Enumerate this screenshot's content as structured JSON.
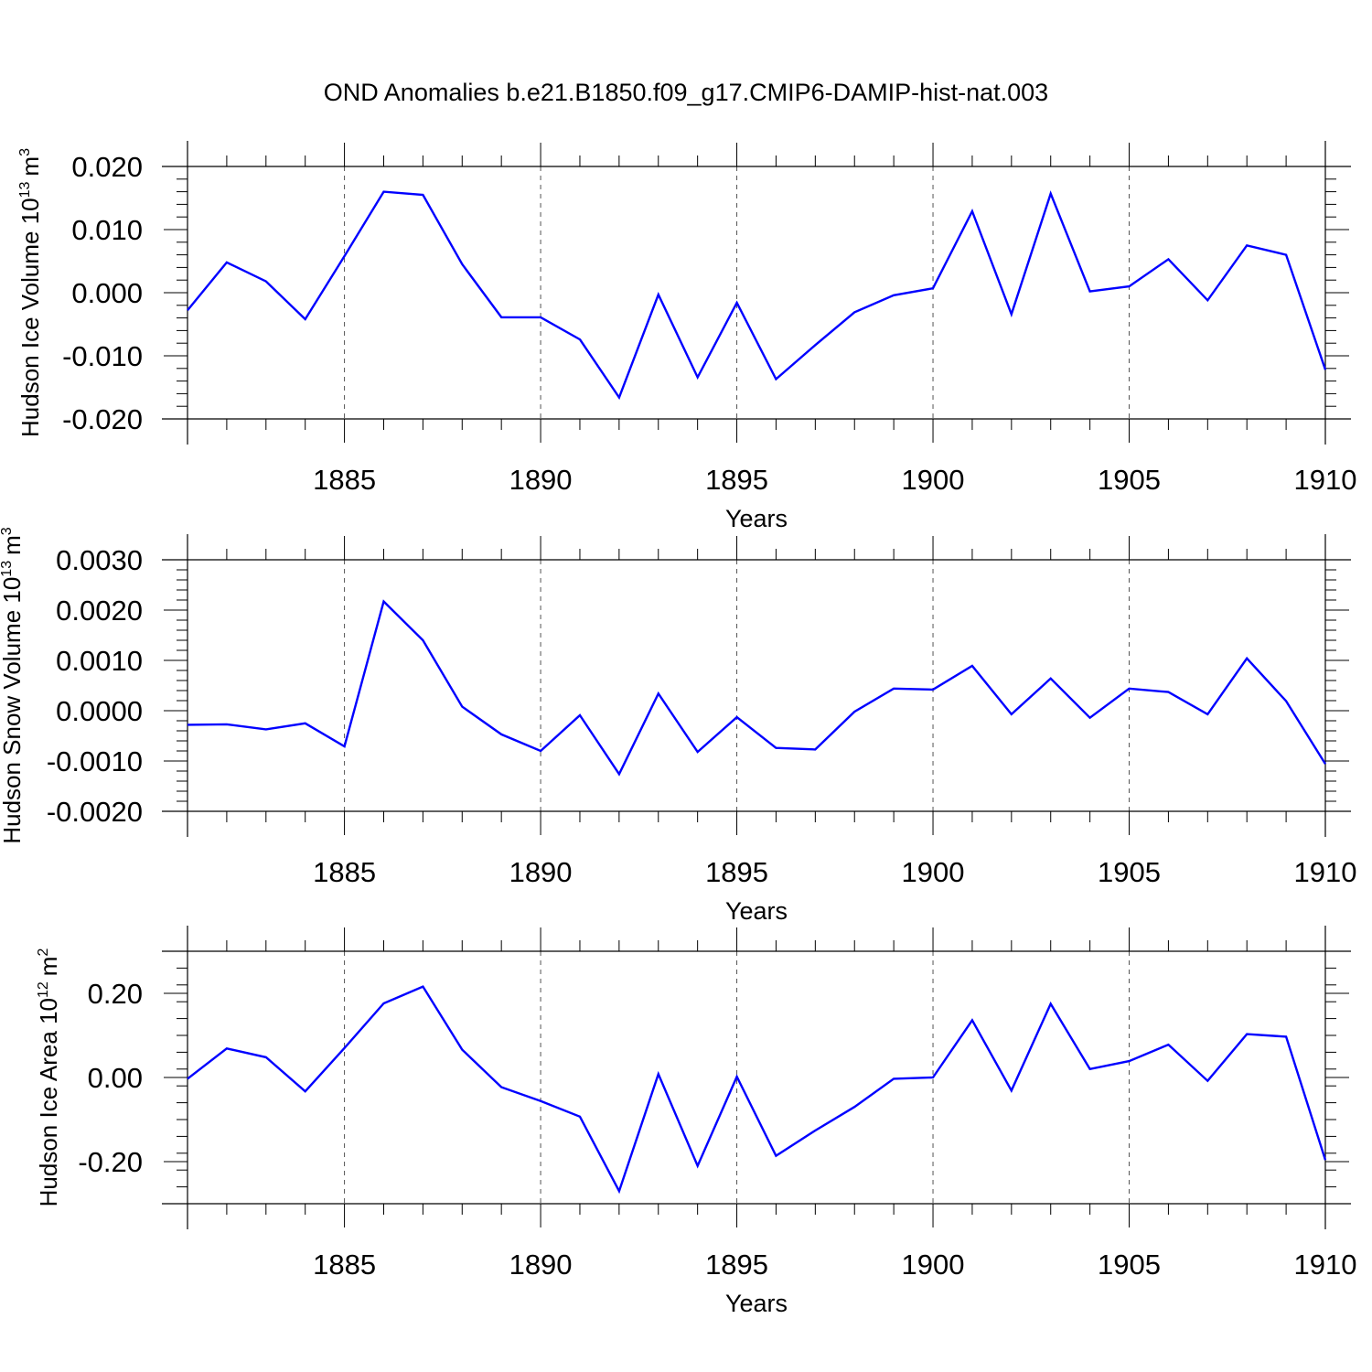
{
  "title": "OND Anomalies b.e21.B1850.f09_g17.CMIP6-DAMIP-hist-nat.003",
  "colors": {
    "line": "#0000ff",
    "axis": "#000000",
    "grid": "#555555"
  },
  "chart_data": [
    {
      "type": "line",
      "title": "OND Anomalies b.e21.B1850.f09_g17.CMIP6-DAMIP-hist-nat.003",
      "xlabel": "Years",
      "ylabel": {
        "text": "Hudson Ice Volume 10",
        "exp": "13",
        "unit": "m",
        "unit_exp": "3"
      },
      "xlim": [
        1881,
        1910
      ],
      "ylim": [
        -0.02,
        0.02
      ],
      "xticks": [
        1885,
        1890,
        1895,
        1900,
        1905,
        1910
      ],
      "xtick_labels": [
        "1885",
        "1890",
        "1895",
        "1900",
        "1905",
        "1910"
      ],
      "yticks": [
        -0.02,
        -0.01,
        0.0,
        0.01,
        0.02
      ],
      "ytick_labels": [
        "-0.020",
        "-0.010",
        "0.000",
        "0.010",
        "0.020"
      ],
      "series": [
        {
          "name": "Hudson Ice Volume",
          "x": [
            1881,
            1882,
            1883,
            1884,
            1885,
            1886,
            1887,
            1888,
            1889,
            1890,
            1891,
            1892,
            1893,
            1894,
            1895,
            1896,
            1897,
            1898,
            1899,
            1900,
            1901,
            1902,
            1903,
            1904,
            1905,
            1906,
            1907,
            1908,
            1909,
            1910
          ],
          "values": [
            -0.0028,
            0.0048,
            0.0018,
            -0.0042,
            0.0058,
            0.016,
            0.0155,
            0.0045,
            -0.0039,
            -0.0039,
            -0.0074,
            -0.0166,
            -0.0003,
            -0.0134,
            -0.0016,
            -0.0137,
            -0.0083,
            -0.0031,
            -0.0004,
            0.0007,
            0.0129,
            -0.0034,
            0.0157,
            0.0002,
            0.001,
            0.0053,
            -0.0012,
            0.0075,
            0.006,
            -0.0122
          ]
        }
      ]
    },
    {
      "type": "line",
      "xlabel": "Years",
      "ylabel": {
        "text": "Hudson Snow Volume 10",
        "exp": "13",
        "unit": "m",
        "unit_exp": "3"
      },
      "xlim": [
        1881,
        1910
      ],
      "ylim": [
        -0.002,
        0.003
      ],
      "xticks": [
        1885,
        1890,
        1895,
        1900,
        1905,
        1910
      ],
      "xtick_labels": [
        "1885",
        "1890",
        "1895",
        "1900",
        "1905",
        "1910"
      ],
      "yticks": [
        -0.002,
        -0.001,
        0.0,
        0.001,
        0.002,
        0.003
      ],
      "ytick_labels": [
        "-0.0020",
        "-0.0010",
        "0.0000",
        "0.0010",
        "0.0020",
        "0.0030"
      ],
      "series": [
        {
          "name": "Hudson Snow Volume",
          "x": [
            1881,
            1882,
            1883,
            1884,
            1885,
            1886,
            1887,
            1888,
            1889,
            1890,
            1891,
            1892,
            1893,
            1894,
            1895,
            1896,
            1897,
            1898,
            1899,
            1900,
            1901,
            1902,
            1903,
            1904,
            1905,
            1906,
            1907,
            1908,
            1909,
            1910
          ],
          "values": [
            -0.00028,
            -0.00027,
            -0.00037,
            -0.00025,
            -0.00071,
            0.00217,
            0.0014,
            8e-05,
            -0.00047,
            -0.0008,
            -9e-05,
            -0.00126,
            0.00034,
            -0.00082,
            -0.00013,
            -0.00074,
            -0.00077,
            -2e-05,
            0.00044,
            0.00042,
            0.00089,
            -7e-05,
            0.00064,
            -0.00014,
            0.00044,
            0.00037,
            -7e-05,
            0.00104,
            0.00019,
            -0.00106
          ]
        }
      ]
    },
    {
      "type": "line",
      "xlabel": "Years",
      "ylabel": {
        "text": "Hudson Ice Area 10",
        "exp": "12",
        "unit": "m",
        "unit_exp": "2"
      },
      "xlim": [
        1881,
        1910
      ],
      "ylim": [
        -0.3,
        0.3
      ],
      "xticks": [
        1885,
        1890,
        1895,
        1900,
        1905,
        1910
      ],
      "xtick_labels": [
        "1885",
        "1890",
        "1895",
        "1900",
        "1905",
        "1910"
      ],
      "yticks": [
        -0.2,
        0.0,
        0.2
      ],
      "ytick_labels": [
        "-0.20",
        "0.00",
        "0.20"
      ],
      "series": [
        {
          "name": "Hudson Ice Area",
          "x": [
            1881,
            1882,
            1883,
            1884,
            1885,
            1886,
            1887,
            1888,
            1889,
            1890,
            1891,
            1892,
            1893,
            1894,
            1895,
            1896,
            1897,
            1898,
            1899,
            1900,
            1901,
            1902,
            1903,
            1904,
            1905,
            1906,
            1907,
            1908,
            1909,
            1910
          ],
          "values": [
            -0.003,
            0.069,
            0.048,
            -0.033,
            0.07,
            0.176,
            0.216,
            0.066,
            -0.023,
            -0.056,
            -0.093,
            -0.27,
            0.008,
            -0.21,
            0.002,
            -0.186,
            -0.126,
            -0.07,
            -0.003,
            0.0,
            0.136,
            -0.031,
            0.175,
            0.02,
            0.039,
            0.078,
            -0.008,
            0.103,
            0.097,
            -0.196
          ]
        }
      ]
    }
  ]
}
